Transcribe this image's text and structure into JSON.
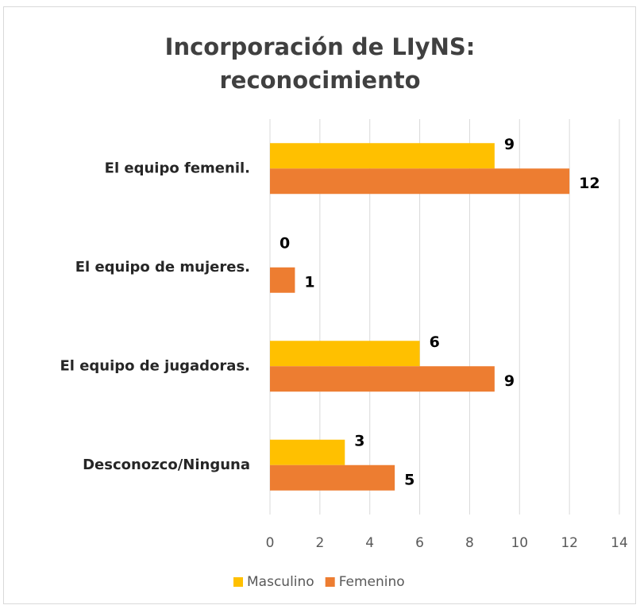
{
  "chart_data": {
    "type": "bar",
    "orientation": "horizontal",
    "title": "Incorporación de LIyNS: reconocimiento",
    "categories": [
      "El equipo femenil.",
      "El equipo de mujeres.",
      "El equipo de jugadoras.",
      "Desconozco/Ninguna"
    ],
    "series": [
      {
        "name": "Masculino",
        "color": "#ffc000",
        "values": [
          9,
          0,
          6,
          3
        ]
      },
      {
        "name": "Femenino",
        "color": "#ed7d31",
        "values": [
          12,
          1,
          9,
          5
        ]
      }
    ],
    "xlim": [
      0,
      14
    ],
    "xticks": [
      0,
      2,
      4,
      6,
      8,
      10,
      12,
      14
    ],
    "grid": true,
    "legend": "bottom"
  }
}
